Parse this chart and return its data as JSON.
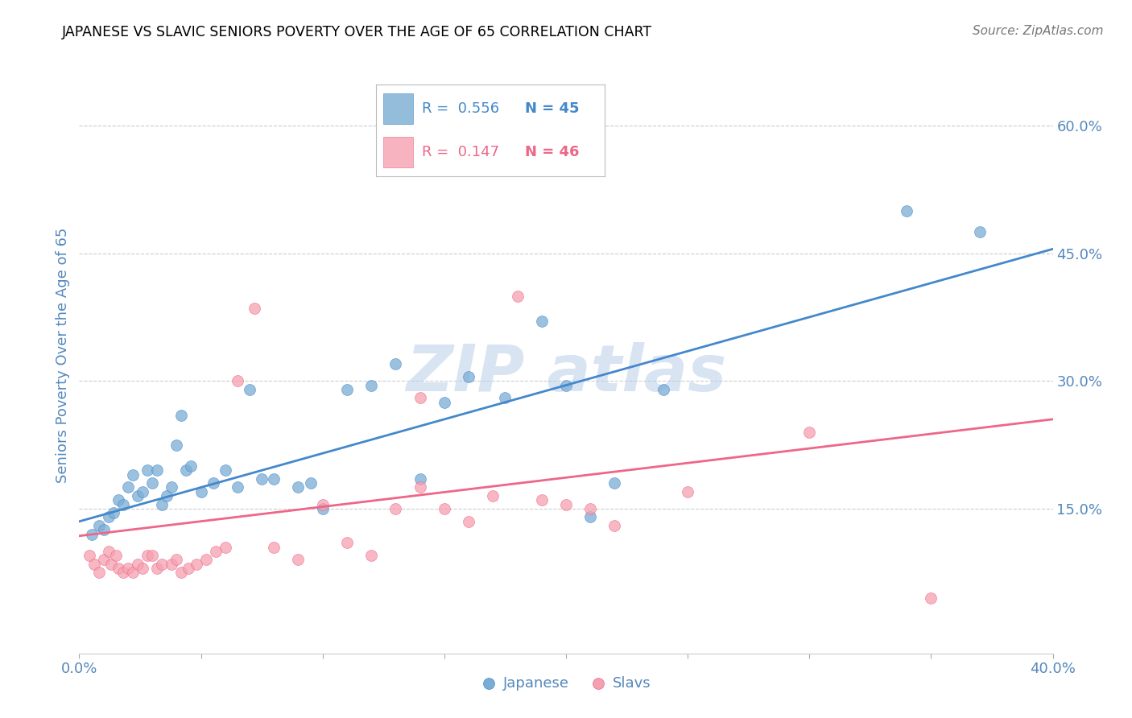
{
  "title": "JAPANESE VS SLAVIC SENIORS POVERTY OVER THE AGE OF 65 CORRELATION CHART",
  "source": "Source: ZipAtlas.com",
  "ylabel": "Seniors Poverty Over the Age of 65",
  "xlim": [
    0.0,
    0.4
  ],
  "ylim": [
    -0.02,
    0.68
  ],
  "xticks": [
    0.0,
    0.05,
    0.1,
    0.15,
    0.2,
    0.25,
    0.3,
    0.35,
    0.4
  ],
  "yticks": [
    0.15,
    0.3,
    0.45,
    0.6
  ],
  "ytick_labels": [
    "15.0%",
    "30.0%",
    "45.0%",
    "60.0%"
  ],
  "xtick_labels": [
    "0.0%",
    "",
    "",
    "",
    "",
    "",
    "",
    "",
    "40.0%"
  ],
  "japanese_color": "#7aadd4",
  "slavic_color": "#f5a0b0",
  "trend_japanese_color": "#4488cc",
  "trend_slavic_color": "#ee6688",
  "tick_color": "#5588bb",
  "legend_R_japanese": "0.556",
  "legend_N_japanese": "45",
  "legend_R_slavic": "0.147",
  "legend_N_slavic": "46",
  "background_color": "#ffffff",
  "japanese_trend_x0": 0.0,
  "japanese_trend_y0": 0.135,
  "japanese_trend_x1": 0.4,
  "japanese_trend_y1": 0.455,
  "slavic_trend_x0": 0.0,
  "slavic_trend_y0": 0.118,
  "slavic_trend_x1": 0.4,
  "slavic_trend_y1": 0.255,
  "japanese_x": [
    0.005,
    0.008,
    0.01,
    0.012,
    0.014,
    0.016,
    0.018,
    0.02,
    0.022,
    0.024,
    0.026,
    0.028,
    0.03,
    0.032,
    0.034,
    0.036,
    0.038,
    0.04,
    0.042,
    0.044,
    0.046,
    0.05,
    0.055,
    0.06,
    0.065,
    0.07,
    0.075,
    0.08,
    0.09,
    0.095,
    0.1,
    0.11,
    0.12,
    0.13,
    0.14,
    0.15,
    0.16,
    0.19,
    0.2,
    0.21,
    0.22,
    0.24,
    0.175,
    0.34,
    0.37
  ],
  "japanese_y": [
    0.12,
    0.13,
    0.125,
    0.14,
    0.145,
    0.16,
    0.155,
    0.175,
    0.19,
    0.165,
    0.17,
    0.195,
    0.18,
    0.195,
    0.155,
    0.165,
    0.175,
    0.225,
    0.26,
    0.195,
    0.2,
    0.17,
    0.18,
    0.195,
    0.175,
    0.29,
    0.185,
    0.185,
    0.175,
    0.18,
    0.15,
    0.29,
    0.295,
    0.32,
    0.185,
    0.275,
    0.305,
    0.37,
    0.295,
    0.14,
    0.18,
    0.29,
    0.28,
    0.5,
    0.475
  ],
  "slavic_x": [
    0.004,
    0.006,
    0.008,
    0.01,
    0.012,
    0.013,
    0.015,
    0.016,
    0.018,
    0.02,
    0.022,
    0.024,
    0.026,
    0.028,
    0.03,
    0.032,
    0.034,
    0.038,
    0.04,
    0.042,
    0.045,
    0.048,
    0.052,
    0.056,
    0.06,
    0.065,
    0.072,
    0.08,
    0.09,
    0.1,
    0.11,
    0.12,
    0.13,
    0.14,
    0.15,
    0.16,
    0.18,
    0.2,
    0.21,
    0.22,
    0.14,
    0.17,
    0.19,
    0.25,
    0.3,
    0.35
  ],
  "slavic_y": [
    0.095,
    0.085,
    0.075,
    0.09,
    0.1,
    0.085,
    0.095,
    0.08,
    0.075,
    0.08,
    0.075,
    0.085,
    0.08,
    0.095,
    0.095,
    0.08,
    0.085,
    0.085,
    0.09,
    0.075,
    0.08,
    0.085,
    0.09,
    0.1,
    0.105,
    0.3,
    0.385,
    0.105,
    0.09,
    0.155,
    0.11,
    0.095,
    0.15,
    0.28,
    0.15,
    0.135,
    0.4,
    0.155,
    0.15,
    0.13,
    0.175,
    0.165,
    0.16,
    0.17,
    0.24,
    0.045
  ]
}
